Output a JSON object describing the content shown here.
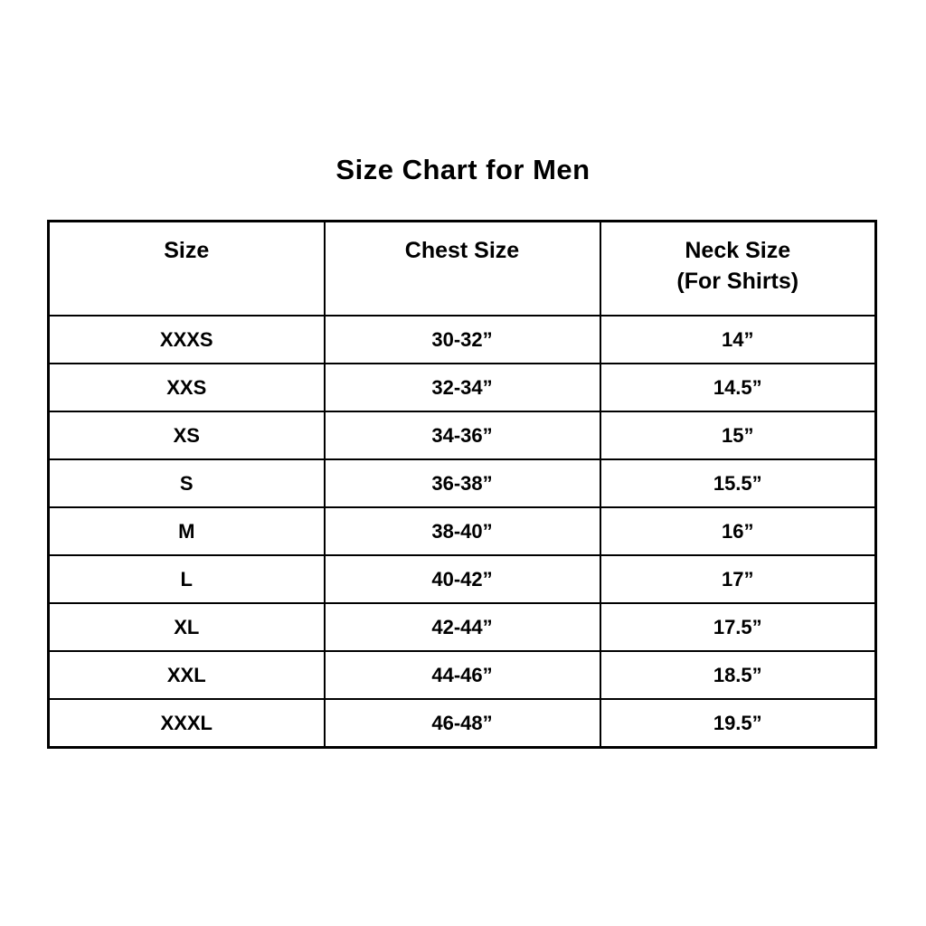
{
  "page": {
    "title": "Size Chart for Men",
    "background_color": "#ffffff",
    "text_color": "#000000",
    "border_color": "#000000"
  },
  "table": {
    "headers": [
      {
        "label": "Size",
        "sub": ""
      },
      {
        "label": "Chest Size",
        "sub": ""
      },
      {
        "label": "Neck Size",
        "sub": "(For Shirts)"
      }
    ],
    "rows": [
      [
        "XXXS",
        "30-32”",
        "14”"
      ],
      [
        "XXS",
        "32-34”",
        "14.5”"
      ],
      [
        "XS",
        "34-36”",
        "15”"
      ],
      [
        "S",
        "36-38”",
        "15.5”"
      ],
      [
        "M",
        "38-40”",
        "16”"
      ],
      [
        "L",
        "40-42”",
        "17”"
      ],
      [
        "XL",
        "42-44”",
        "17.5”"
      ],
      [
        "XXL",
        "44-46”",
        "18.5”"
      ],
      [
        "XXXL",
        "46-48”",
        "19.5”"
      ]
    ]
  },
  "chart_data": {
    "type": "table",
    "title": "Size Chart for Men",
    "columns": [
      "Size",
      "Chest Size",
      "Neck Size (For Shirts)"
    ],
    "rows": [
      [
        "XXXS",
        "30-32”",
        "14”"
      ],
      [
        "XXS",
        "32-34”",
        "14.5”"
      ],
      [
        "XS",
        "34-36”",
        "15”"
      ],
      [
        "S",
        "36-38”",
        "15.5”"
      ],
      [
        "M",
        "38-40”",
        "16”"
      ],
      [
        "L",
        "40-42”",
        "17”"
      ],
      [
        "XL",
        "42-44”",
        "17.5”"
      ],
      [
        "XXL",
        "44-46”",
        "18.5”"
      ],
      [
        "XXXL",
        "46-48”",
        "19.5”"
      ]
    ]
  }
}
